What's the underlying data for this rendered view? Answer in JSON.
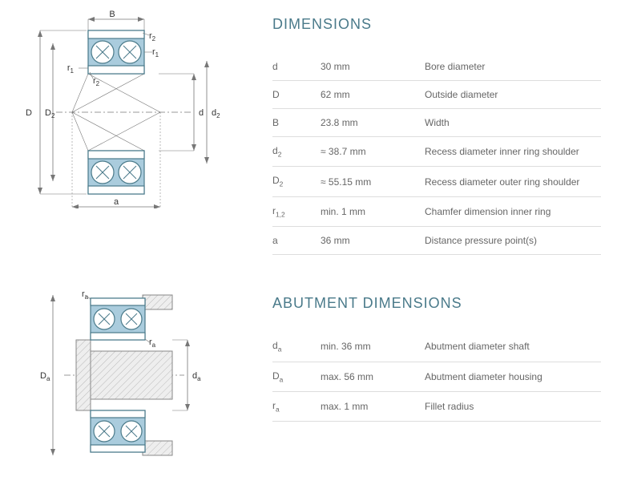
{
  "colors": {
    "heading": "#4a7a8a",
    "text": "#666666",
    "border": "#dddddd",
    "bearing_fill": "#aaccdd",
    "bearing_stroke": "#4a7a8a",
    "diagram_line": "#777777",
    "hatch_fill": "#e8e8e8",
    "hatch_line": "#b8b8b8"
  },
  "section1": {
    "title": "DIMENSIONS",
    "rows": [
      {
        "sym_html": "d",
        "val": "30 mm",
        "desc": "Bore diameter"
      },
      {
        "sym_html": "D",
        "val": "62 mm",
        "desc": "Outside diameter"
      },
      {
        "sym_html": "B",
        "val": "23.8 mm",
        "desc": "Width"
      },
      {
        "sym_html": "d<sub>2</sub>",
        "val": "≈ 38.7 mm",
        "desc": "Recess diameter inner ring shoulder"
      },
      {
        "sym_html": "D<sub>2</sub>",
        "val": "≈ 55.15 mm",
        "desc": "Recess diameter outer ring shoulder"
      },
      {
        "sym_html": "r<sub>1,2</sub>",
        "val": "min. 1 mm",
        "desc": "Chamfer dimension inner ring"
      },
      {
        "sym_html": "a",
        "val": "36 mm",
        "desc": "Distance pressure point(s)"
      }
    ],
    "diagram_labels": {
      "D": "D",
      "D2": "D",
      "d": "d",
      "d2": "d",
      "B": "B",
      "r1": "r",
      "r2": "r",
      "a": "a"
    }
  },
  "section2": {
    "title": "ABUTMENT DIMENSIONS",
    "rows": [
      {
        "sym_html": "d<sub>a</sub>",
        "val": "min. 36 mm",
        "desc": "Abutment diameter shaft"
      },
      {
        "sym_html": "D<sub>a</sub>",
        "val": "max. 56 mm",
        "desc": "Abutment diameter housing"
      },
      {
        "sym_html": "r<sub>a</sub>",
        "val": "max. 1 mm",
        "desc": "Fillet radius"
      }
    ],
    "diagram_labels": {
      "Da": "D",
      "da": "d",
      "ra": "r"
    }
  }
}
